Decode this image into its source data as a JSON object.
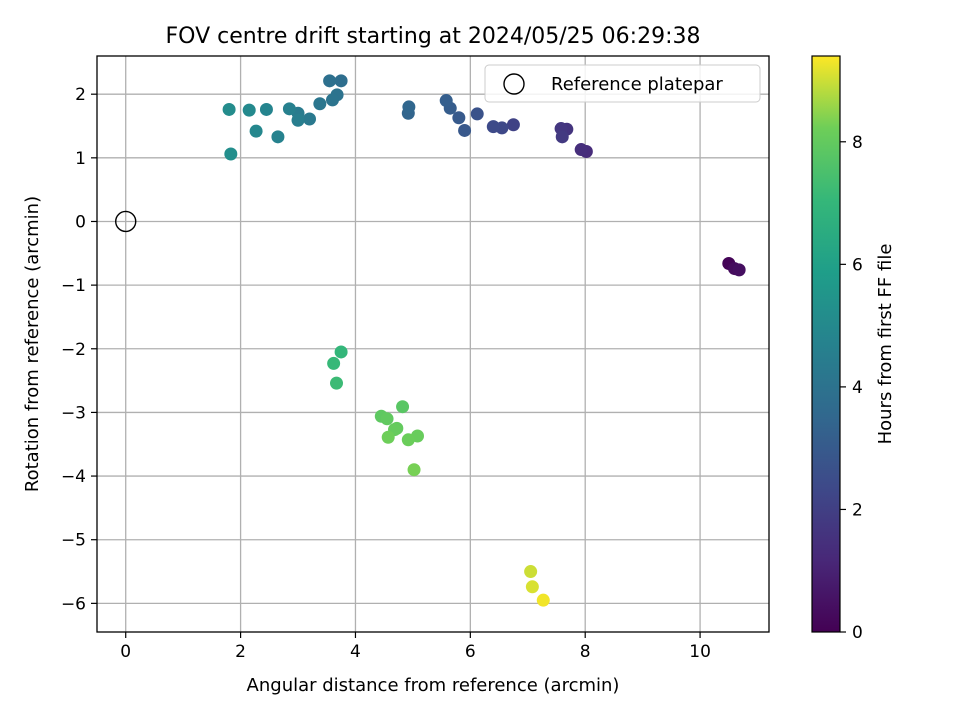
{
  "chart_data": {
    "type": "scatter",
    "title": "FOV centre drift starting at 2024/05/25 06:29:38",
    "xlabel": "Angular distance from reference (arcmin)",
    "ylabel": "Rotation from reference (arcmin)",
    "xlim": [
      -0.5,
      11.2
    ],
    "ylim": [
      -6.45,
      2.6
    ],
    "xticks": [
      0,
      2,
      4,
      6,
      8,
      10
    ],
    "yticks": [
      -6,
      -5,
      -4,
      -3,
      -2,
      -1,
      0,
      1,
      2
    ],
    "grid": true,
    "legend": {
      "placement": "top-right",
      "entries": [
        "Reference platepar"
      ]
    },
    "reference_point": {
      "x": 0,
      "y": 0,
      "label": "Reference platepar"
    },
    "colorbar": {
      "label": "Hours from first FF file",
      "colormap": "viridis",
      "range": [
        0,
        9.4
      ],
      "ticks": [
        0,
        2,
        4,
        6,
        8
      ]
    },
    "points": [
      {
        "x": 10.5,
        "y": -0.66,
        "c": 0.1
      },
      {
        "x": 10.6,
        "y": -0.74,
        "c": 0.3
      },
      {
        "x": 10.68,
        "y": -0.76,
        "c": 0.4
      },
      {
        "x": 8.02,
        "y": 1.1,
        "c": 1.3
      },
      {
        "x": 7.93,
        "y": 1.13,
        "c": 1.4
      },
      {
        "x": 7.68,
        "y": 1.45,
        "c": 1.6
      },
      {
        "x": 7.58,
        "y": 1.46,
        "c": 1.7
      },
      {
        "x": 7.6,
        "y": 1.33,
        "c": 1.8
      },
      {
        "x": 6.75,
        "y": 1.52,
        "c": 2.1
      },
      {
        "x": 6.55,
        "y": 1.47,
        "c": 2.3
      },
      {
        "x": 6.4,
        "y": 1.49,
        "c": 2.4
      },
      {
        "x": 6.12,
        "y": 1.69,
        "c": 2.7
      },
      {
        "x": 5.9,
        "y": 1.43,
        "c": 2.9
      },
      {
        "x": 5.8,
        "y": 1.63,
        "c": 3.0
      },
      {
        "x": 5.65,
        "y": 1.78,
        "c": 3.1
      },
      {
        "x": 5.58,
        "y": 1.9,
        "c": 3.2
      },
      {
        "x": 4.92,
        "y": 1.7,
        "c": 3.4
      },
      {
        "x": 4.93,
        "y": 1.8,
        "c": 3.5
      },
      {
        "x": 3.75,
        "y": 2.21,
        "c": 3.8
      },
      {
        "x": 3.55,
        "y": 2.21,
        "c": 3.9
      },
      {
        "x": 3.68,
        "y": 1.99,
        "c": 4.0
      },
      {
        "x": 3.6,
        "y": 1.91,
        "c": 4.05
      },
      {
        "x": 3.38,
        "y": 1.85,
        "c": 4.15
      },
      {
        "x": 3.2,
        "y": 1.61,
        "c": 4.3
      },
      {
        "x": 3.0,
        "y": 1.7,
        "c": 4.4
      },
      {
        "x": 3.0,
        "y": 1.59,
        "c": 4.5
      },
      {
        "x": 2.85,
        "y": 1.77,
        "c": 4.6
      },
      {
        "x": 2.65,
        "y": 1.33,
        "c": 4.7
      },
      {
        "x": 2.45,
        "y": 1.76,
        "c": 4.8
      },
      {
        "x": 2.27,
        "y": 1.42,
        "c": 4.9
      },
      {
        "x": 2.15,
        "y": 1.75,
        "c": 5.0
      },
      {
        "x": 1.8,
        "y": 1.76,
        "c": 5.1
      },
      {
        "x": 1.83,
        "y": 1.06,
        "c": 5.2
      },
      {
        "x": 3.75,
        "y": -2.05,
        "c": 7.0
      },
      {
        "x": 3.62,
        "y": -2.23,
        "c": 7.1
      },
      {
        "x": 3.67,
        "y": -2.54,
        "c": 7.2
      },
      {
        "x": 4.82,
        "y": -2.91,
        "c": 7.8
      },
      {
        "x": 4.45,
        "y": -3.06,
        "c": 7.9
      },
      {
        "x": 4.55,
        "y": -3.1,
        "c": 7.95
      },
      {
        "x": 4.72,
        "y": -3.25,
        "c": 8.0
      },
      {
        "x": 4.68,
        "y": -3.27,
        "c": 8.05
      },
      {
        "x": 5.08,
        "y": -3.37,
        "c": 8.1
      },
      {
        "x": 4.92,
        "y": -3.43,
        "c": 8.15
      },
      {
        "x": 4.57,
        "y": -3.39,
        "c": 8.2
      },
      {
        "x": 5.02,
        "y": -3.9,
        "c": 8.3
      },
      {
        "x": 7.05,
        "y": -5.5,
        "c": 9.0
      },
      {
        "x": 7.08,
        "y": -5.74,
        "c": 9.1
      },
      {
        "x": 7.27,
        "y": -5.95,
        "c": 9.3
      }
    ]
  }
}
